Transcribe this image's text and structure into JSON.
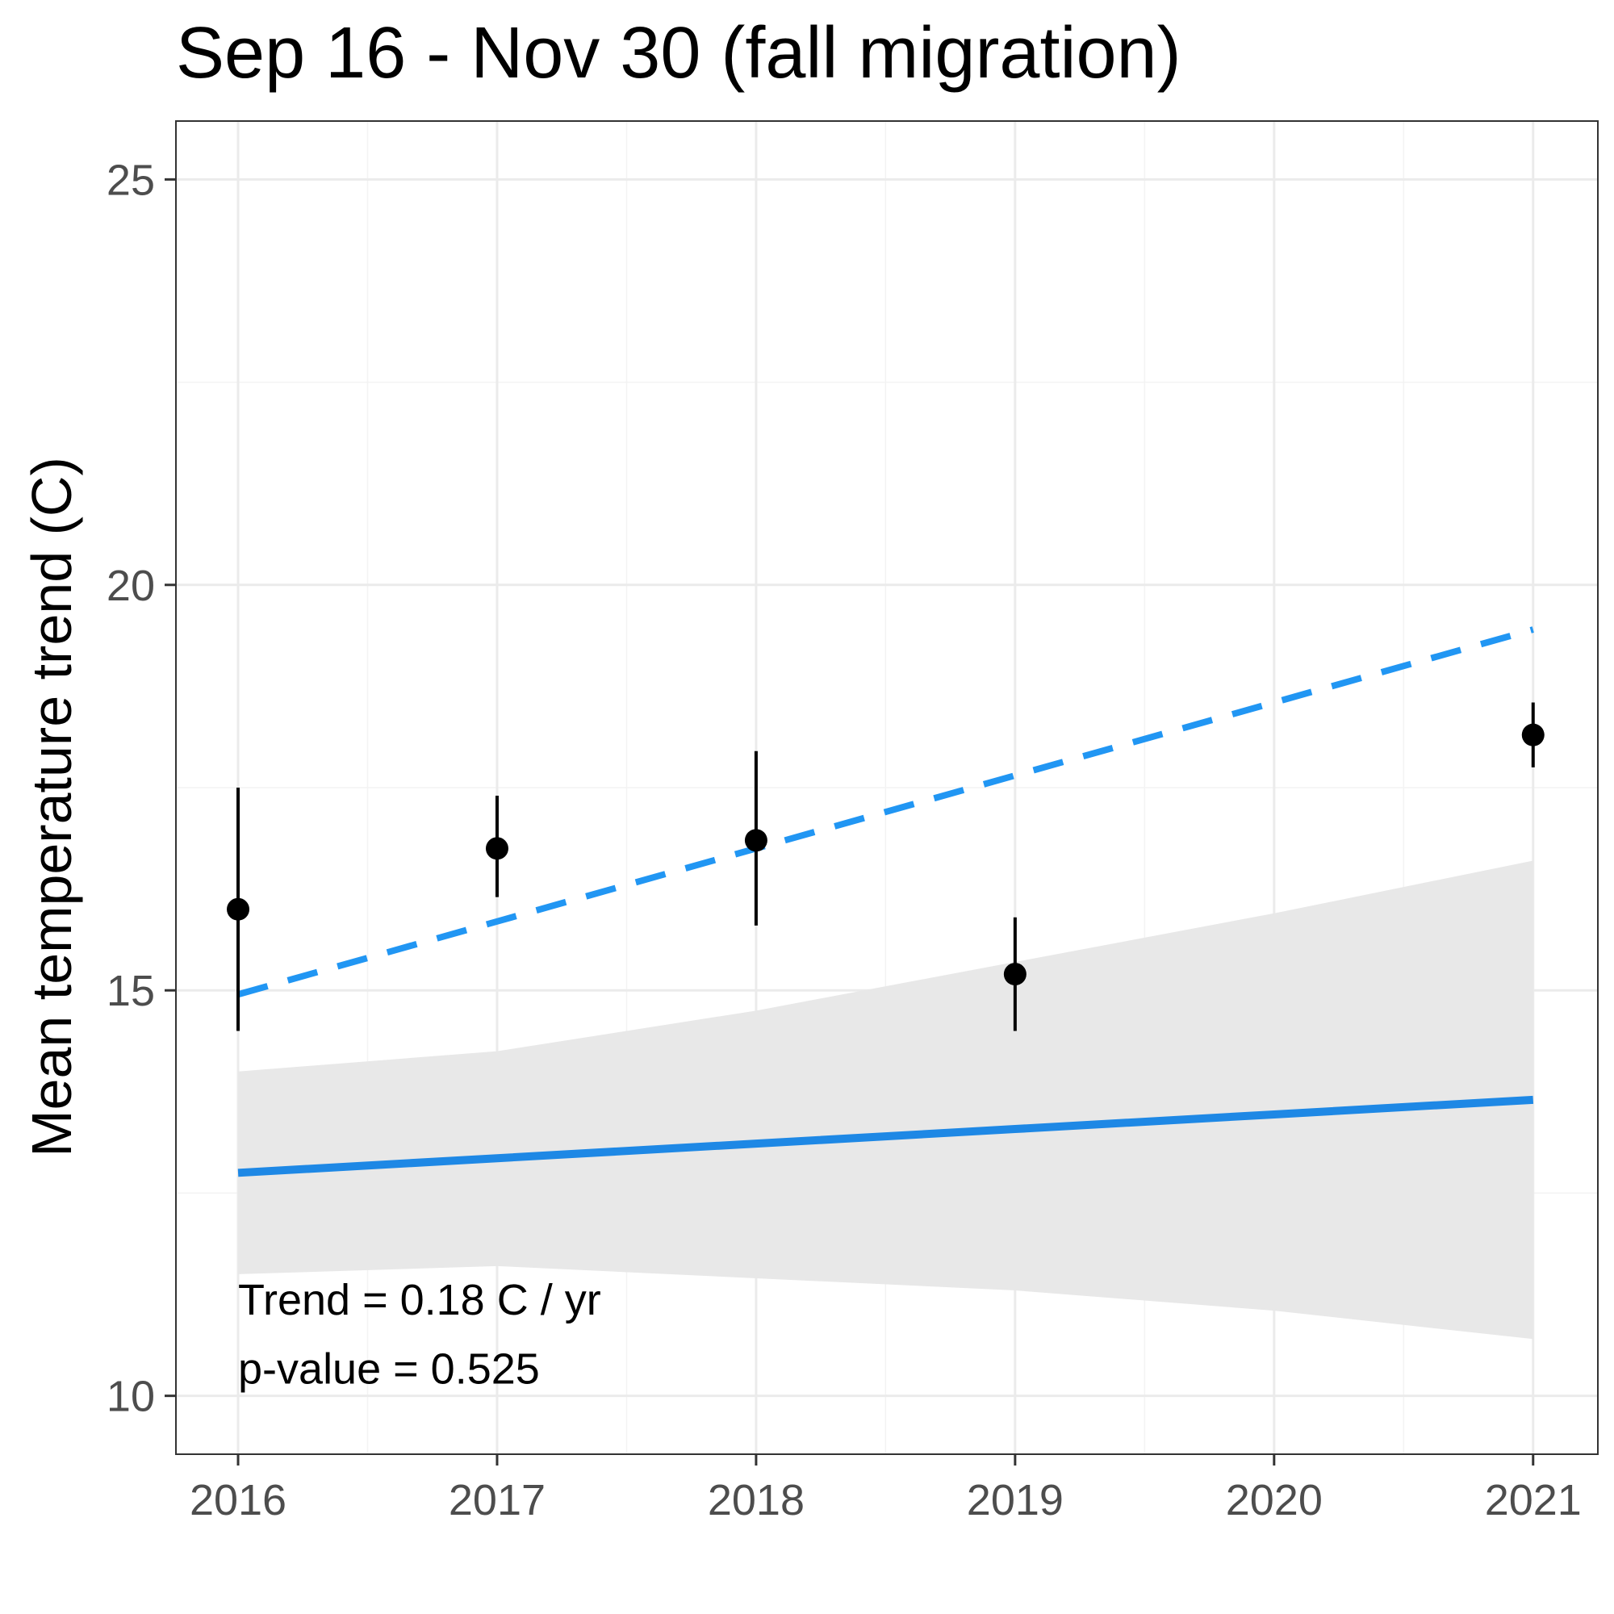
{
  "chart_data": {
    "type": "scatter",
    "title": "Sep 16 - Nov 30 (fall migration)",
    "xlabel": "",
    "ylabel": "Mean temperature trend (C)",
    "xlim": [
      2015.76,
      2021.25
    ],
    "ylim": [
      9.28,
      25.72
    ],
    "x_ticks": [
      2016,
      2017,
      2018,
      2019,
      2020,
      2021
    ],
    "y_ticks": [
      10,
      15,
      20,
      25
    ],
    "grid": true,
    "legend": "none",
    "points": [
      {
        "x": 2016,
        "y": 16.0,
        "ymin": 14.5,
        "ymax": 17.5
      },
      {
        "x": 2017,
        "y": 16.75,
        "ymin": 16.15,
        "ymax": 17.4
      },
      {
        "x": 2018,
        "y": 16.85,
        "ymin": 15.8,
        "ymax": 17.95
      },
      {
        "x": 2019,
        "y": 15.2,
        "ymin": 14.5,
        "ymax": 15.9
      },
      {
        "x": 2021,
        "y": 18.15,
        "ymin": 17.75,
        "ymax": 18.55
      }
    ],
    "dashed_line": {
      "x": [
        2016,
        2017,
        2018,
        2019,
        2020,
        2021
      ],
      "y": [
        14.95,
        15.85,
        16.75,
        17.65,
        18.55,
        19.45
      ]
    },
    "trend_line": {
      "x": [
        2016,
        2017,
        2018,
        2019,
        2020,
        2021
      ],
      "y": [
        12.75,
        12.93,
        13.11,
        13.29,
        13.47,
        13.65
      ]
    },
    "confidence_band": {
      "x": [
        2016,
        2017,
        2018,
        2019,
        2020,
        2021
      ],
      "upper": [
        14.0,
        14.25,
        14.75,
        15.35,
        15.95,
        16.6
      ],
      "lower": [
        11.5,
        11.6,
        11.45,
        11.3,
        11.05,
        10.7
      ]
    },
    "annotations": [
      "Trend = 0.18 C / yr",
      "p-value = 0.525"
    ],
    "colors": {
      "trend": "#1e88e5",
      "dashed": "#2196f3",
      "band": "#e8e8e8",
      "points": "#000000",
      "grid_major": "#ebebeb",
      "grid_minor": "#f3f3f3",
      "panel_border": "#333333",
      "tick_text": "#4d4d4d"
    }
  }
}
